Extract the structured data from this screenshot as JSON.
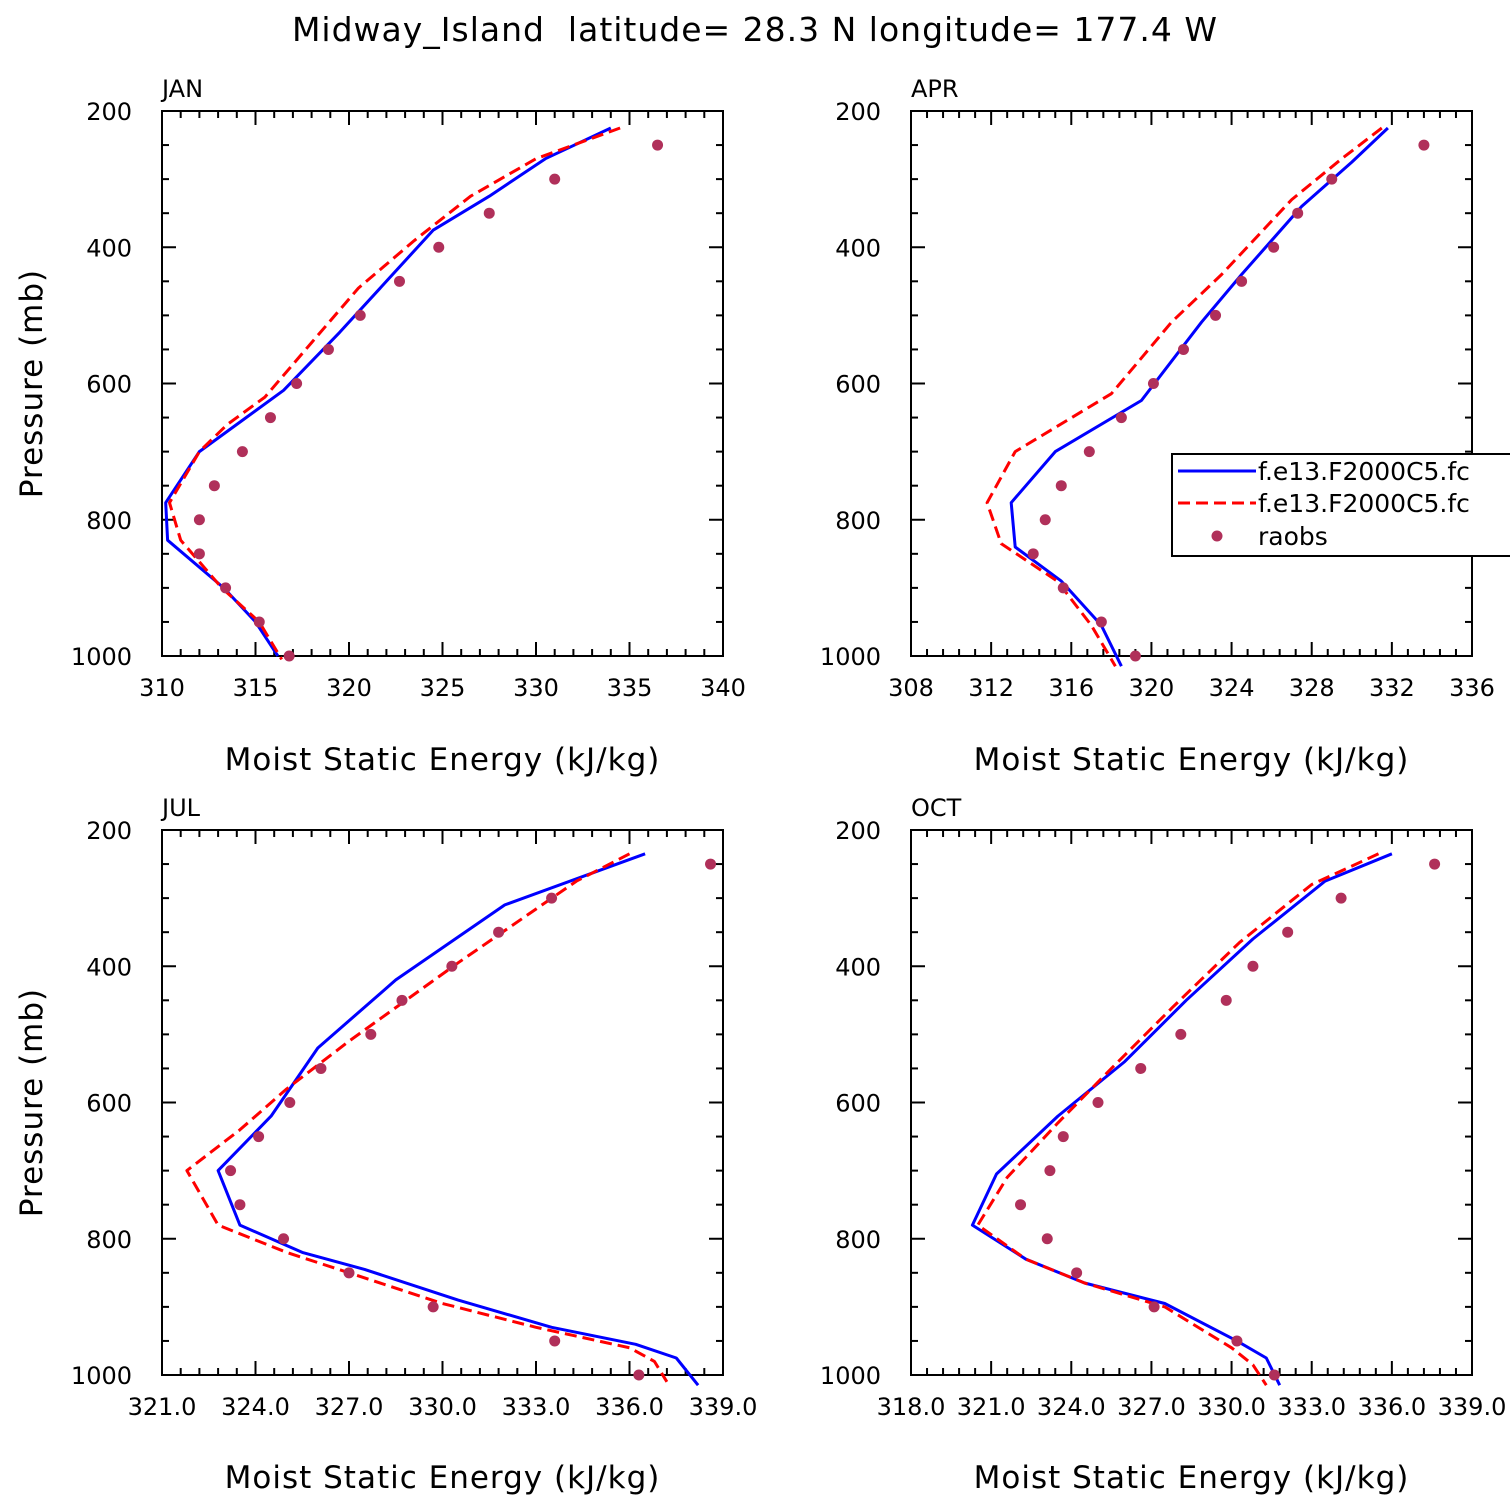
{
  "title": "Midway_Island  latitude= 28.3 N longitude= 177.4 W",
  "colors": {
    "model1": "#0000ff",
    "model2": "#ff0000",
    "obs": "#b0305a",
    "axis": "#000000"
  },
  "legend": {
    "placement": "right-middle of APR panel",
    "entries": [
      "f.e13.F2000C5.fc",
      "f.e13.F2000C5.fc",
      "raobs"
    ]
  },
  "chart_data": [
    {
      "type": "line",
      "panel": "JAN",
      "xlabel": "Moist Static Energy (kJ/kg)",
      "ylabel": "Pressure (mb)",
      "xlim": [
        310,
        340
      ],
      "ylim": [
        1000,
        200
      ],
      "xticks": [
        "310",
        "315",
        "320",
        "325",
        "330",
        "335",
        "340"
      ],
      "yticks": [
        "200",
        "400",
        "600",
        "800",
        "1000"
      ],
      "series": [
        {
          "name": "f.e13.F2000C5.fc",
          "style": "solid",
          "color": "#0000ff",
          "points": [
            [
              334,
              225
            ],
            [
              330.5,
              270
            ],
            [
              327.5,
              325
            ],
            [
              324.5,
              375
            ],
            [
              322,
              450
            ],
            [
              319.5,
              525
            ],
            [
              316.5,
              610
            ],
            [
              314.5,
              650
            ],
            [
              312,
              700
            ],
            [
              310.2,
              775
            ],
            [
              310.3,
              830
            ],
            [
              313.3,
              900
            ],
            [
              315,
              950
            ],
            [
              316.2,
              1000
            ]
          ]
        },
        {
          "name": "f.e13.F2000C5.fc",
          "style": "dashed",
          "color": "#ff0000",
          "points": [
            [
              334.5,
              225
            ],
            [
              330,
              270
            ],
            [
              326.5,
              325
            ],
            [
              323.5,
              390
            ],
            [
              320.5,
              460
            ],
            [
              318,
              540
            ],
            [
              315.5,
              620
            ],
            [
              313.5,
              660
            ],
            [
              312,
              700
            ],
            [
              310.4,
              775
            ],
            [
              311,
              830
            ],
            [
              313.2,
              900
            ],
            [
              315.2,
              950
            ],
            [
              316.4,
              1005
            ]
          ]
        },
        {
          "name": "raobs",
          "style": "marker",
          "color": "#b0305a",
          "points": [
            [
              336.5,
              250
            ],
            [
              331,
              300
            ],
            [
              327.5,
              350
            ],
            [
              324.8,
              400
            ],
            [
              322.7,
              450
            ],
            [
              320.6,
              500
            ],
            [
              318.9,
              550
            ],
            [
              317.2,
              600
            ],
            [
              315.8,
              650
            ],
            [
              314.3,
              700
            ],
            [
              312.8,
              750
            ],
            [
              312,
              800
            ],
            [
              312,
              850
            ],
            [
              313.4,
              900
            ],
            [
              315.2,
              950
            ],
            [
              316.8,
              1000
            ]
          ]
        }
      ]
    },
    {
      "type": "line",
      "panel": "APR",
      "xlabel": "Moist Static Energy (kJ/kg)",
      "ylabel": "",
      "xlim": [
        308,
        336
      ],
      "ylim": [
        1000,
        200
      ],
      "xticks": [
        "308",
        "312",
        "316",
        "320",
        "324",
        "328",
        "332",
        "336"
      ],
      "yticks": [
        "200",
        "400",
        "600",
        "800",
        "1000"
      ],
      "series": [
        {
          "name": "f.e13.F2000C5.fc",
          "style": "solid",
          "color": "#0000ff",
          "points": [
            [
              331.8,
              225
            ],
            [
              330,
              275
            ],
            [
              327.5,
              340
            ],
            [
              324.5,
              440
            ],
            [
              322.5,
              510
            ],
            [
              319.5,
              625
            ],
            [
              315.2,
              700
            ],
            [
              313,
              775
            ],
            [
              313.2,
              840
            ],
            [
              315.5,
              890
            ],
            [
              317.5,
              955
            ],
            [
              318.5,
              1015
            ]
          ]
        },
        {
          "name": "f.e13.F2000C5.fc",
          "style": "dashed",
          "color": "#ff0000",
          "points": [
            [
              331.5,
              225
            ],
            [
              329.5,
              270
            ],
            [
              327,
              330
            ],
            [
              323.5,
              440
            ],
            [
              321,
              510
            ],
            [
              318,
              615
            ],
            [
              313.2,
              700
            ],
            [
              311.8,
              775
            ],
            [
              312.5,
              835
            ],
            [
              315.3,
              890
            ],
            [
              317,
              955
            ],
            [
              318.2,
              1015
            ]
          ]
        },
        {
          "name": "raobs",
          "style": "marker",
          "color": "#b0305a",
          "points": [
            [
              333.6,
              250
            ],
            [
              329,
              300
            ],
            [
              327.3,
              350
            ],
            [
              326.1,
              400
            ],
            [
              324.5,
              450
            ],
            [
              323.2,
              500
            ],
            [
              321.6,
              550
            ],
            [
              320.1,
              600
            ],
            [
              318.5,
              650
            ],
            [
              316.9,
              700
            ],
            [
              315.5,
              750
            ],
            [
              314.7,
              800
            ],
            [
              314.1,
              850
            ],
            [
              315.6,
              900
            ],
            [
              317.5,
              950
            ],
            [
              319.2,
              1000
            ]
          ]
        }
      ]
    },
    {
      "type": "line",
      "panel": "JUL",
      "xlabel": "Moist Static Energy (kJ/kg)",
      "ylabel": "Pressure (mb)",
      "xlim": [
        321,
        339
      ],
      "ylim": [
        1000,
        200
      ],
      "xticks": [
        "321.0",
        "324.0",
        "327.0",
        "330.0",
        "333.0",
        "336.0",
        "339.0"
      ],
      "yticks": [
        "200",
        "400",
        "600",
        "800",
        "1000"
      ],
      "series": [
        {
          "name": "f.e13.F2000C5.fc",
          "style": "solid",
          "color": "#0000ff",
          "points": [
            [
              336.5,
              235
            ],
            [
              332,
              310
            ],
            [
              328.5,
              420
            ],
            [
              326,
              520
            ],
            [
              324.5,
              620
            ],
            [
              322.8,
              700
            ],
            [
              323.5,
              780
            ],
            [
              325.5,
              820
            ],
            [
              327.5,
              845
            ],
            [
              330.5,
              890
            ],
            [
              333.5,
              930
            ],
            [
              336.2,
              955
            ],
            [
              337.5,
              975
            ],
            [
              338.2,
              1015
            ]
          ]
        },
        {
          "name": "f.e13.F2000C5.fc",
          "style": "dashed",
          "color": "#ff0000",
          "points": [
            [
              336,
              235
            ],
            [
              334.3,
              275
            ],
            [
              330.5,
              395
            ],
            [
              327,
              510
            ],
            [
              325,
              580
            ],
            [
              323.5,
              640
            ],
            [
              321.8,
              700
            ],
            [
              322.8,
              780
            ],
            [
              325,
              820
            ],
            [
              327,
              850
            ],
            [
              330,
              895
            ],
            [
              333,
              930
            ],
            [
              336,
              960
            ],
            [
              336.8,
              980
            ],
            [
              337.2,
              1010
            ]
          ]
        },
        {
          "name": "raobs",
          "style": "marker",
          "color": "#b0305a",
          "points": [
            [
              338.6,
              250
            ],
            [
              333.5,
              300
            ],
            [
              331.8,
              350
            ],
            [
              330.3,
              400
            ],
            [
              328.7,
              450
            ],
            [
              327.7,
              500
            ],
            [
              326.1,
              550
            ],
            [
              325.1,
              600
            ],
            [
              324.1,
              650
            ],
            [
              323.2,
              700
            ],
            [
              323.5,
              750
            ],
            [
              324.9,
              800
            ],
            [
              327,
              850
            ],
            [
              329.7,
              900
            ],
            [
              333.6,
              950
            ],
            [
              336.3,
              1000
            ]
          ]
        }
      ]
    },
    {
      "type": "line",
      "panel": "OCT",
      "xlabel": "Moist Static Energy (kJ/kg)",
      "ylabel": "",
      "xlim": [
        318,
        339
      ],
      "ylim": [
        1000,
        200
      ],
      "xticks": [
        "318.0",
        "321.0",
        "324.0",
        "327.0",
        "330.0",
        "333.0",
        "336.0",
        "339.0"
      ],
      "yticks": [
        "200",
        "400",
        "600",
        "800",
        "1000"
      ],
      "series": [
        {
          "name": "f.e13.F2000C5.fc",
          "style": "solid",
          "color": "#0000ff",
          "points": [
            [
              336,
              235
            ],
            [
              333.5,
              275
            ],
            [
              330.8,
              360
            ],
            [
              328.3,
              450
            ],
            [
              326,
              540
            ],
            [
              323.5,
              620
            ],
            [
              321.2,
              705
            ],
            [
              320.3,
              780
            ],
            [
              322.3,
              830
            ],
            [
              324.5,
              865
            ],
            [
              327.5,
              895
            ],
            [
              330.2,
              950
            ],
            [
              331.3,
              975
            ],
            [
              331.8,
              1015
            ]
          ]
        },
        {
          "name": "f.e13.F2000C5.fc",
          "style": "dashed",
          "color": "#ff0000",
          "points": [
            [
              335.5,
              235
            ],
            [
              333,
              280
            ],
            [
              330.3,
              365
            ],
            [
              327.8,
              460
            ],
            [
              325.5,
              550
            ],
            [
              323.5,
              630
            ],
            [
              321.6,
              710
            ],
            [
              320.5,
              780
            ],
            [
              322.3,
              830
            ],
            [
              324.5,
              865
            ],
            [
              327.5,
              900
            ],
            [
              330,
              960
            ],
            [
              330.8,
              985
            ],
            [
              331.3,
              1015
            ]
          ]
        },
        {
          "name": "raobs",
          "style": "marker",
          "color": "#b0305a",
          "points": [
            [
              337.6,
              250
            ],
            [
              334.1,
              300
            ],
            [
              332.1,
              350
            ],
            [
              330.8,
              400
            ],
            [
              329.8,
              450
            ],
            [
              328.1,
              500
            ],
            [
              326.6,
              550
            ],
            [
              325,
              600
            ],
            [
              323.7,
              650
            ],
            [
              323.2,
              700
            ],
            [
              322.1,
              750
            ],
            [
              323.1,
              800
            ],
            [
              324.2,
              850
            ],
            [
              327.1,
              900
            ],
            [
              330.2,
              950
            ],
            [
              331.6,
              1000
            ]
          ]
        }
      ]
    }
  ]
}
